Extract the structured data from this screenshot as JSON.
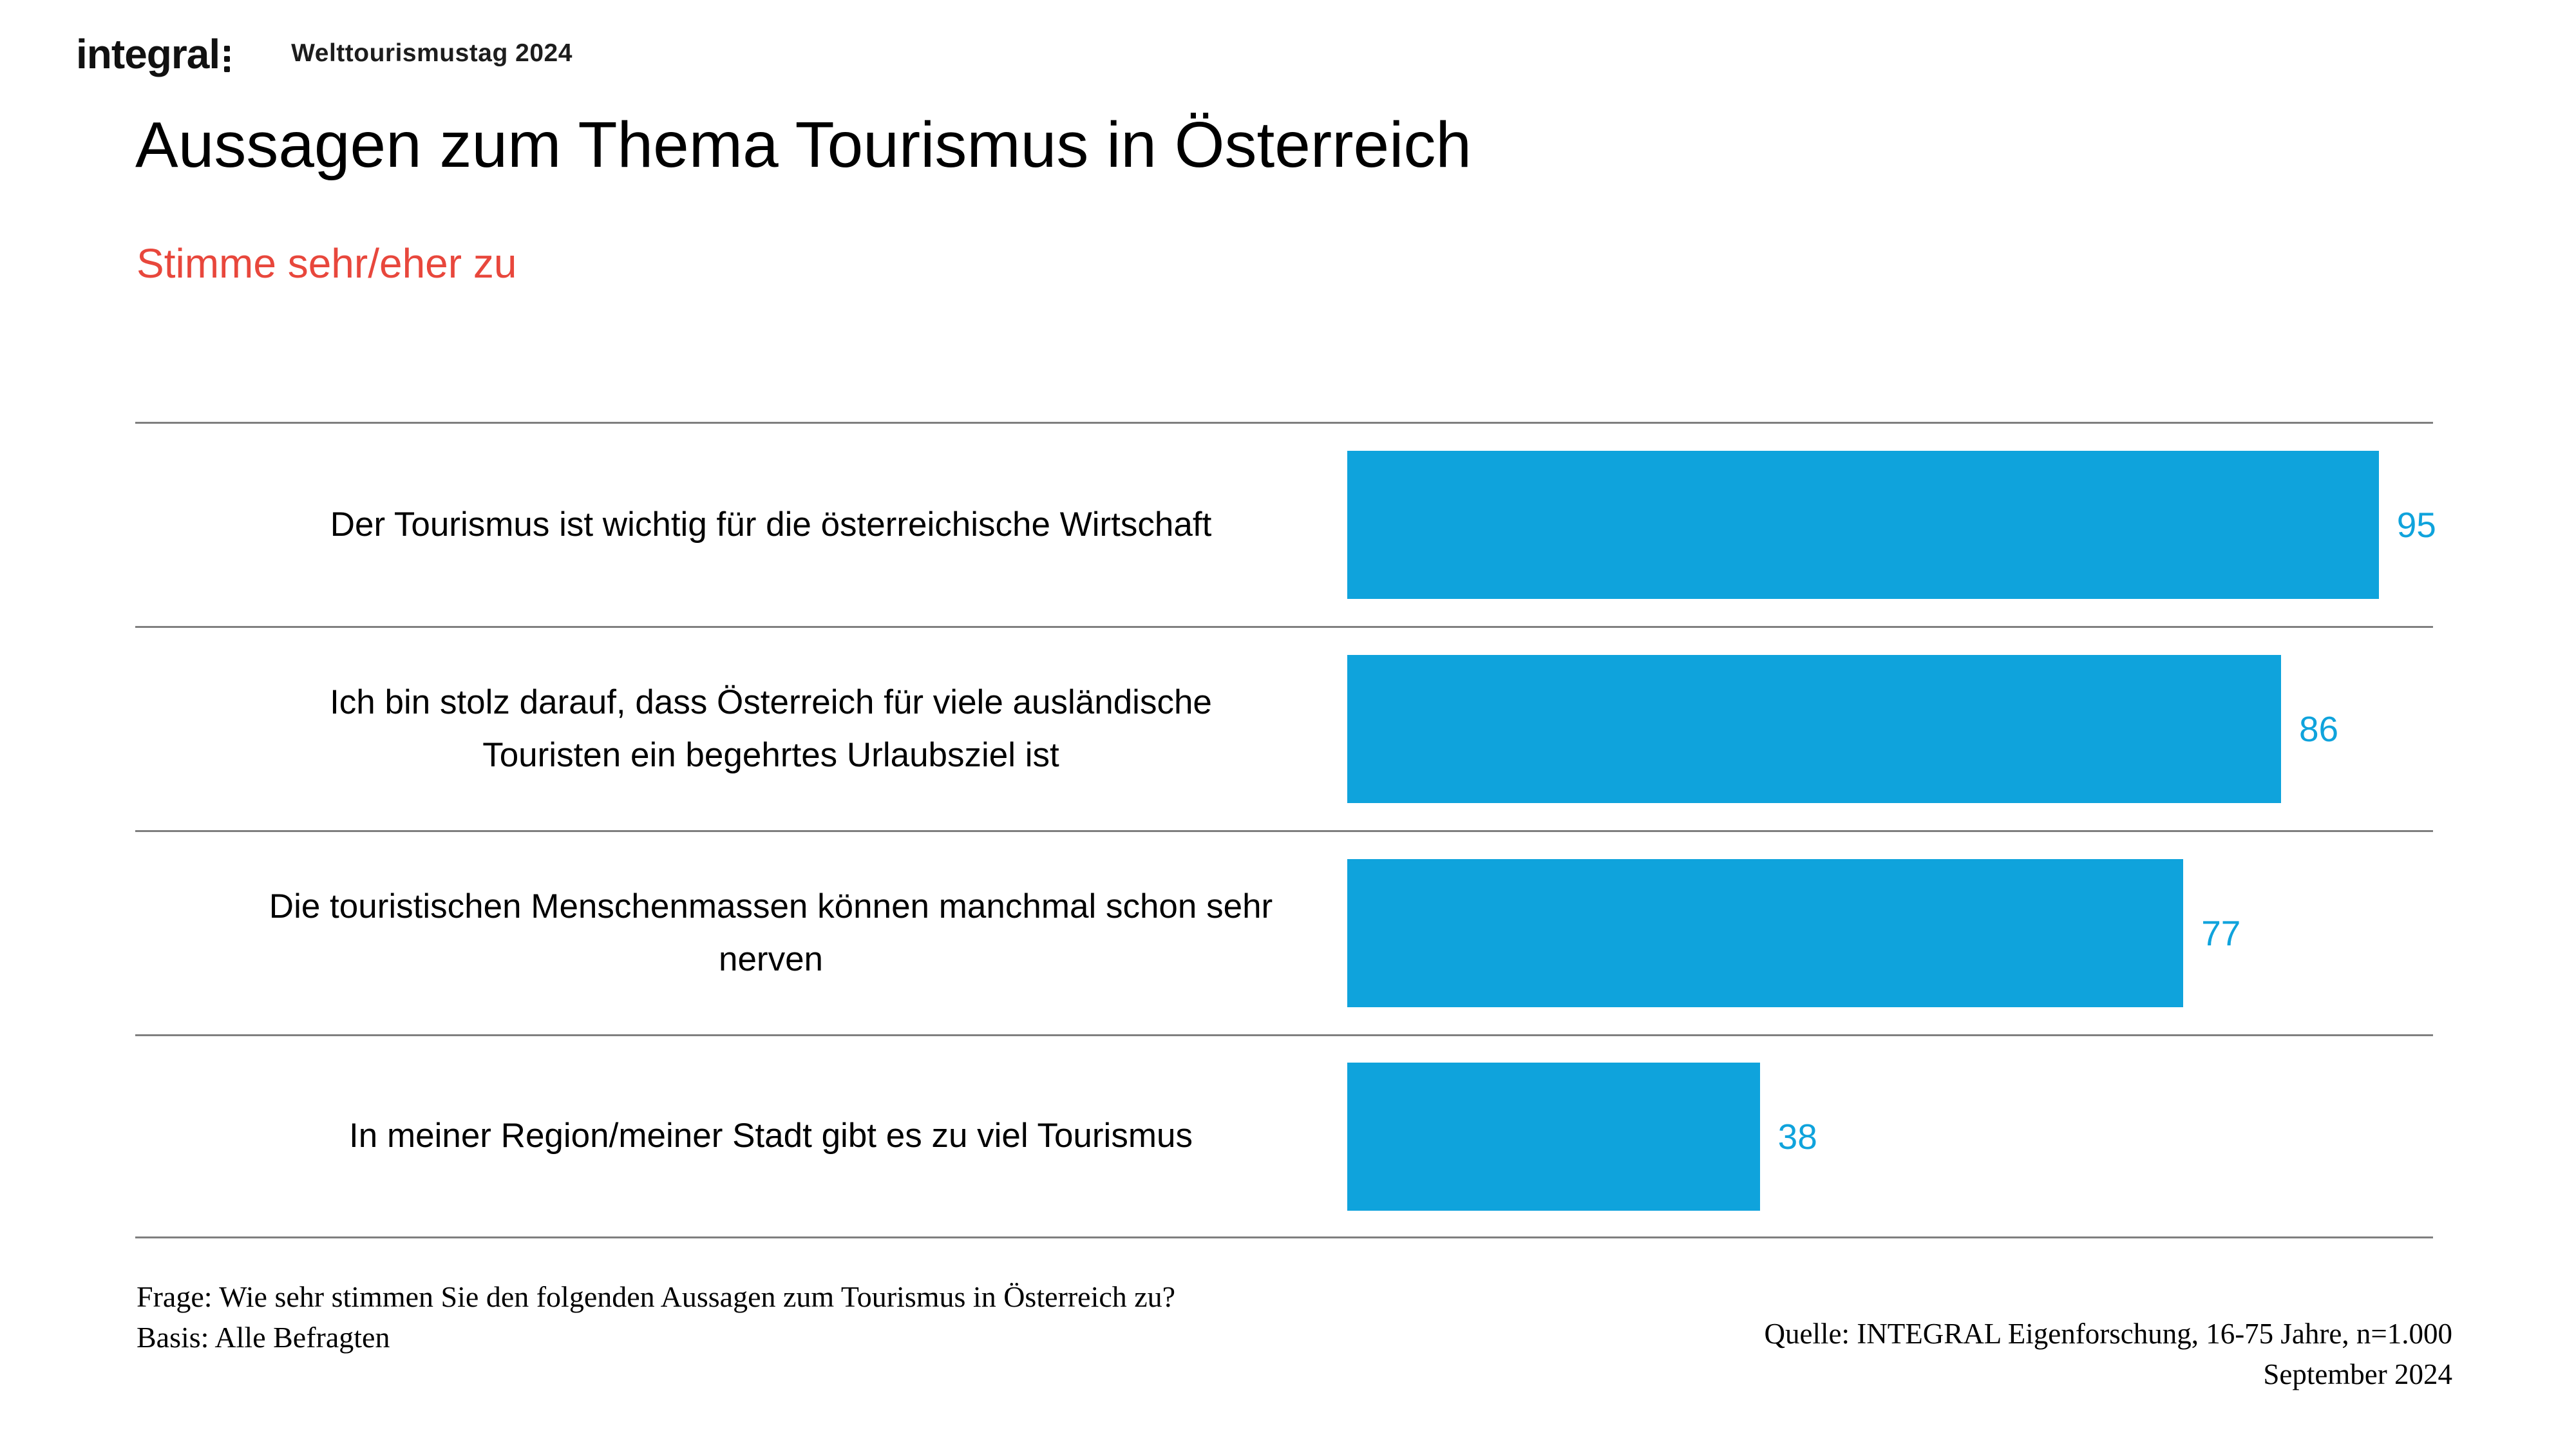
{
  "header": {
    "logo_text": "integral",
    "topic": "Welttourismustag 2024"
  },
  "title": "Aussagen zum Thema Tourismus in Österreich",
  "subtitle": "Stimme sehr/eher zu",
  "colors": {
    "bar_blue": "#0fa3dc",
    "value_blue": "#0fa3dc",
    "accent_red": "#e8473c",
    "separator_gray": "#7f7f7f"
  },
  "chart_data": {
    "type": "bar",
    "orientation": "horizontal",
    "title": "Aussagen zum Thema Tourismus in Österreich",
    "subtitle": "Stimme sehr/eher zu",
    "categories": [
      "Der Tourismus ist wichtig für die österreichische Wirtschaft",
      "Ich bin stolz darauf, dass Österreich für viele ausländische\nTouristen ein begehrtes Urlaubsziel ist",
      "Die touristischen Menschenmassen können manchmal schon sehr\nnerven",
      "In meiner Region/meiner Stadt gibt es zu viel Tourismus"
    ],
    "values": [
      95,
      86,
      77,
      38
    ],
    "xlim": [
      0,
      100
    ],
    "grid": "horizontal row separators only",
    "legend": "none",
    "value_labels": "right of bar"
  },
  "footer": {
    "question": "Frage: Wie sehr stimmen Sie den folgenden Aussagen zum Tourismus in Österreich zu?",
    "basis": "Basis: Alle Befragten",
    "source": "Quelle: INTEGRAL Eigenforschung, 16-75 Jahre, n=1.000",
    "date": "September 2024"
  }
}
